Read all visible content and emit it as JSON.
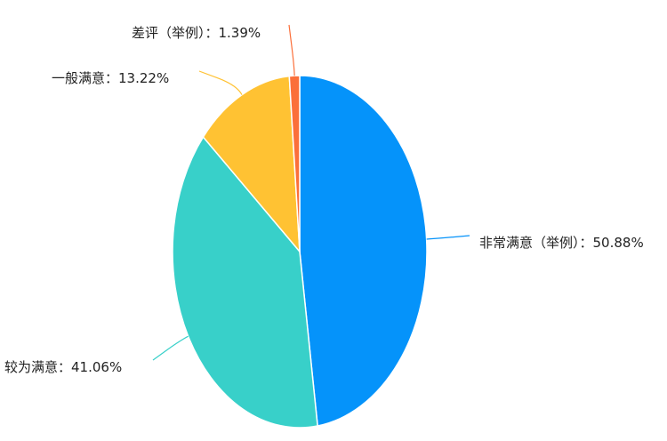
{
  "chart_data": {
    "type": "pie",
    "title": "",
    "slices": [
      {
        "name": "非常满意（举例）",
        "value": 50.88,
        "label": "非常满意（举例）：50.88%",
        "color": "#0593fa"
      },
      {
        "name": "较为满意",
        "value": 41.06,
        "label": "较为满意：41.06%",
        "color": "#38d0c9"
      },
      {
        "name": "一般满意",
        "value": 13.22,
        "label": "一般满意：13.22%",
        "color": "#ffc233"
      },
      {
        "name": "差评（举例）",
        "value": 1.39,
        "label": "差评（举例）：1.39%",
        "color": "#fb6f3a"
      }
    ],
    "legend": "none"
  }
}
